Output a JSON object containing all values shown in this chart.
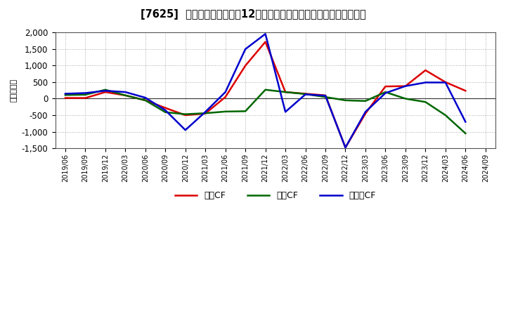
{
  "title": "[7625]  キャッシュフローの12か月移動合計の対前年同期増減額の推移",
  "ylabel": "（百万円）",
  "background_color": "#ffffff",
  "plot_bg_color": "#ffffff",
  "grid_color": "#aaaaaa",
  "ylim": [
    -1500,
    2000
  ],
  "yticks": [
    -1500,
    -1000,
    -500,
    0,
    500,
    1000,
    1500,
    2000
  ],
  "x_labels": [
    "2019/06",
    "2019/09",
    "2019/12",
    "2020/03",
    "2020/06",
    "2020/09",
    "2020/12",
    "2021/03",
    "2021/06",
    "2021/09",
    "2021/12",
    "2022/03",
    "2022/06",
    "2022/09",
    "2022/12",
    "2023/03",
    "2023/06",
    "2023/09",
    "2023/12",
    "2024/03",
    "2024/06",
    "2024/09"
  ],
  "operating_cf": [
    20,
    20,
    200,
    100,
    -50,
    -280,
    -500,
    -450,
    50,
    1000,
    1720,
    200,
    150,
    100,
    -1480,
    -450,
    370,
    380,
    860,
    500,
    240,
    null
  ],
  "investing_cf": [
    110,
    120,
    270,
    100,
    -50,
    -410,
    -470,
    -440,
    -390,
    -380,
    270,
    200,
    140,
    50,
    -50,
    -70,
    200,
    0,
    -100,
    -500,
    -1050,
    null
  ],
  "free_cf": [
    150,
    170,
    240,
    200,
    30,
    -350,
    -950,
    -400,
    200,
    1500,
    1960,
    -400,
    130,
    90,
    -1480,
    -400,
    170,
    380,
    490,
    490,
    -700,
    null
  ],
  "colors": {
    "operating": "#dd0000",
    "investing": "#006600",
    "free": "#0000cc"
  },
  "line_width": 1.8,
  "legend_labels": [
    "営業CF",
    "投資CF",
    "フリーCF"
  ]
}
